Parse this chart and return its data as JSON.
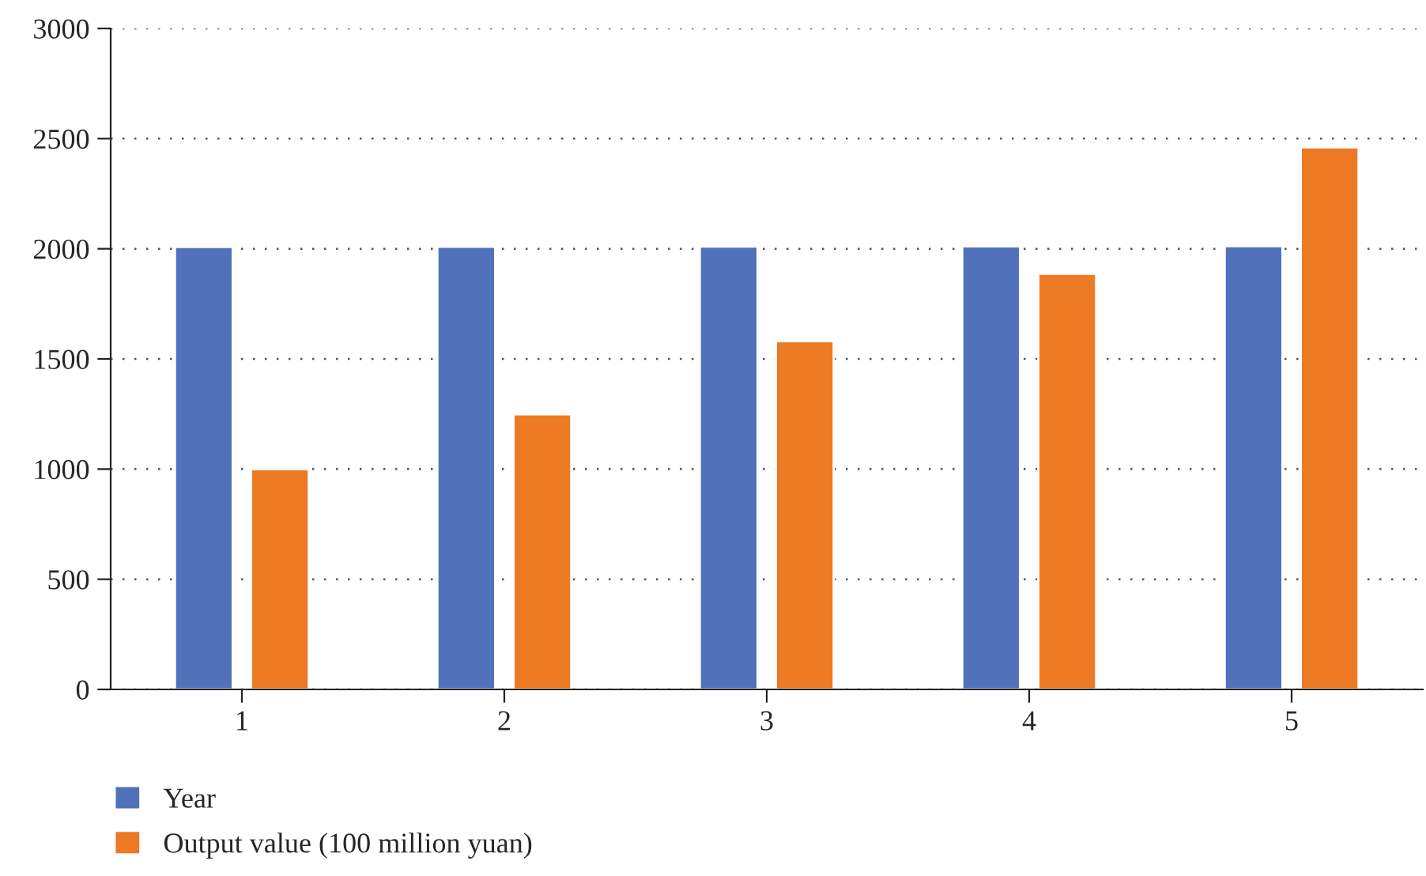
{
  "chart_data": {
    "type": "bar",
    "categories": [
      "1",
      "2",
      "3",
      "4",
      "5"
    ],
    "series": [
      {
        "name": "Year",
        "color": "#5172bb",
        "values": [
          2008,
          2009,
          2010,
          2011,
          2012
        ]
      },
      {
        "name": "Output value (100 million yuan)",
        "color": "#ec7a23",
        "values": [
          1000,
          1248,
          1580,
          1886,
          2460
        ]
      }
    ],
    "ylim": [
      0,
      3000
    ],
    "yticks": [
      0,
      500,
      1000,
      1500,
      2000,
      2500,
      3000
    ],
    "grid": "y",
    "legend": "bottom left"
  }
}
